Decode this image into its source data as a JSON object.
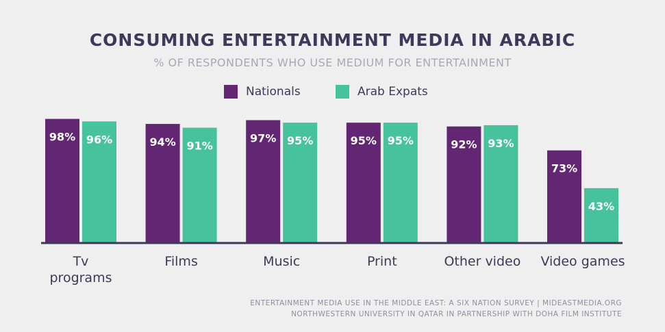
{
  "colors": {
    "nationals": "#632672",
    "expats": "#46c29c",
    "baseline": "#3c3a58"
  },
  "chart_data": {
    "type": "bar",
    "title": "CONSUMING ENTERTAINMENT MEDIA IN ARABIC",
    "subtitle": "% OF RESPONDENTS WHO USE MEDIUM FOR ENTERTAINMENT",
    "categories": [
      [
        "Tv",
        "programs"
      ],
      [
        "Films"
      ],
      [
        "Music"
      ],
      [
        "Print"
      ],
      [
        "Other video"
      ],
      [
        "Video games"
      ]
    ],
    "series": [
      {
        "name": "Nationals",
        "values": [
          98,
          94,
          97,
          95,
          92,
          73
        ],
        "labels": [
          "98%",
          "94%",
          "97%",
          "95%",
          "92%",
          "73%"
        ]
      },
      {
        "name": "Arab Expats",
        "values": [
          96,
          91,
          95,
          95,
          93,
          43
        ],
        "labels": [
          "96%",
          "91%",
          "95%",
          "95%",
          "93%",
          "43%"
        ]
      }
    ],
    "legend": "top-center",
    "grid": false
  },
  "source": {
    "line1": "ENTERTAINMENT MEDIA USE IN THE MIDDLE EAST: A SIX NATION SURVEY | MIDEASTMEDIA.ORG",
    "line2": "NORTHWESTERN UNIVERSITY IN QATAR IN PARTNERSHIP WITH DOHA FILM INSTITUTE"
  }
}
